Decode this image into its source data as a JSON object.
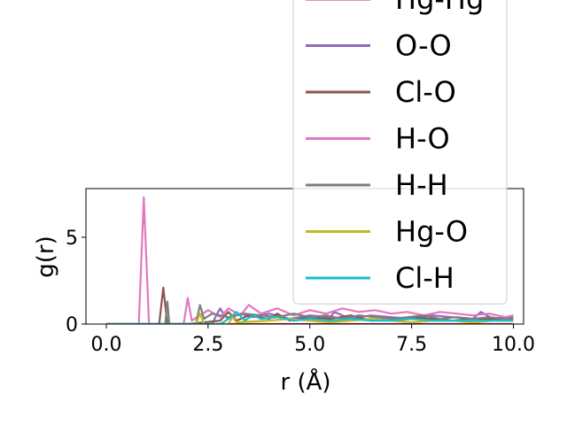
{
  "chart_data": {
    "type": "line",
    "xlabel": "r (Å)",
    "ylabel": "g(r)",
    "xlim": [
      -0.5,
      10.25
    ],
    "ylim": [
      0,
      7.8
    ],
    "xticks": [
      0.0,
      2.5,
      5.0,
      7.5,
      10.0
    ],
    "xtick_labels": [
      "0.0",
      "2.5",
      "5.0",
      "7.5",
      "10.0"
    ],
    "yticks": [
      0,
      5
    ],
    "ytick_labels": [
      "0",
      "5"
    ],
    "grid": false,
    "legend_position": "upper-right, overflowing above the axes",
    "series": [
      {
        "name": "Hg-Hg",
        "color": "#d62728",
        "x": [
          0,
          10
        ],
        "y": [
          0,
          0
        ]
      },
      {
        "name": "O-O",
        "color": "#9467bd",
        "x": [
          0,
          2.6,
          2.7,
          2.8,
          2.9,
          3.0,
          3.3,
          3.6,
          4.0,
          4.5,
          5.0,
          5.5,
          5.6,
          6.0,
          6.5,
          7.0,
          7.5,
          8.0,
          8.5,
          9.0,
          9.2,
          9.5,
          9.8,
          10.0
        ],
        "y": [
          0,
          0,
          0.5,
          0.9,
          0.5,
          0.3,
          0.6,
          0.4,
          0.6,
          0.3,
          0.5,
          0.4,
          0.7,
          0.3,
          0.5,
          0.4,
          0.3,
          0.5,
          0.4,
          0.3,
          0.7,
          0.3,
          0.4,
          0.4
        ]
      },
      {
        "name": "Cl-O",
        "color": "#8c564b",
        "x": [
          0,
          1.3,
          1.4,
          1.5,
          2.0,
          2.8,
          3.0,
          3.2,
          3.5,
          4.0,
          4.2,
          4.5,
          5.0,
          5.5,
          6.0,
          6.5,
          7.0,
          7.5,
          8.0,
          8.5,
          9.0,
          9.5,
          10.0
        ],
        "y": [
          0,
          0,
          2.1,
          0,
          0,
          0.2,
          0.7,
          0.2,
          0.5,
          0.3,
          0.6,
          0.2,
          0.4,
          0.3,
          0.5,
          0.2,
          0.3,
          0.4,
          0.3,
          0.2,
          0.3,
          0.3,
          0.3
        ]
      },
      {
        "name": "H-O",
        "color": "#e377c2",
        "x": [
          0,
          0.8,
          0.92,
          1.05,
          1.5,
          1.9,
          2.0,
          2.1,
          2.5,
          2.8,
          3.0,
          3.3,
          3.5,
          3.8,
          4.2,
          4.6,
          5.0,
          5.4,
          5.8,
          6.2,
          6.6,
          7.0,
          7.4,
          7.8,
          8.2,
          8.6,
          9.0,
          9.4,
          9.8,
          10.0
        ],
        "y": [
          0,
          0,
          7.3,
          0,
          0,
          0,
          1.5,
          0.2,
          0.8,
          0.4,
          0.9,
          0.5,
          1.1,
          0.6,
          0.9,
          0.5,
          0.8,
          0.6,
          0.9,
          0.7,
          0.8,
          0.6,
          0.7,
          0.5,
          0.7,
          0.6,
          0.5,
          0.6,
          0.4,
          0.5
        ]
      },
      {
        "name": "H-H",
        "color": "#7f7f7f",
        "x": [
          0,
          1.45,
          1.5,
          1.55,
          2.2,
          2.3,
          2.4,
          2.6,
          2.8,
          3.0,
          3.4,
          3.8,
          4.2,
          4.6,
          5.0,
          5.4,
          5.8,
          6.2,
          6.6,
          7.0,
          7.4,
          7.8,
          8.2,
          8.6,
          9.0,
          9.4,
          9.8,
          10.0
        ],
        "y": [
          0,
          0,
          1.3,
          0,
          0,
          1.1,
          0.3,
          0.6,
          0.5,
          0.4,
          0.6,
          0.5,
          0.4,
          0.6,
          0.4,
          0.5,
          0.3,
          0.5,
          0.4,
          0.3,
          0.4,
          0.5,
          0.3,
          0.4,
          0.3,
          0.4,
          0.3,
          0.3
        ]
      },
      {
        "name": "Hg-O",
        "color": "#bcbd22",
        "x": [
          0,
          2.2,
          2.3,
          2.4,
          3.0,
          3.1,
          3.2,
          4.0,
          4.5,
          5.0,
          5.5,
          6.0,
          6.5,
          7.0,
          7.5,
          8.0,
          8.5,
          9.0,
          9.5,
          10.0
        ],
        "y": [
          0,
          0,
          0.6,
          0,
          0,
          0.4,
          0.1,
          0.2,
          0.3,
          0.2,
          0.1,
          0.2,
          0.3,
          0.2,
          0.1,
          0.2,
          0.2,
          0.1,
          0.2,
          0.2
        ]
      },
      {
        "name": "Cl-H",
        "color": "#17becf",
        "x": [
          0,
          2.8,
          3.0,
          3.2,
          3.4,
          3.6,
          3.8,
          4.2,
          4.6,
          5.0,
          5.5,
          6.0,
          6.5,
          7.0,
          7.5,
          8.0,
          8.5,
          9.0,
          9.5,
          10.0
        ],
        "y": [
          0,
          0,
          0.3,
          0.7,
          0.2,
          0.5,
          0.3,
          0.4,
          0.2,
          0.3,
          0.2,
          0.3,
          0.2,
          0.2,
          0.3,
          0.2,
          0.2,
          0.2,
          0.2,
          0.2
        ]
      }
    ]
  }
}
